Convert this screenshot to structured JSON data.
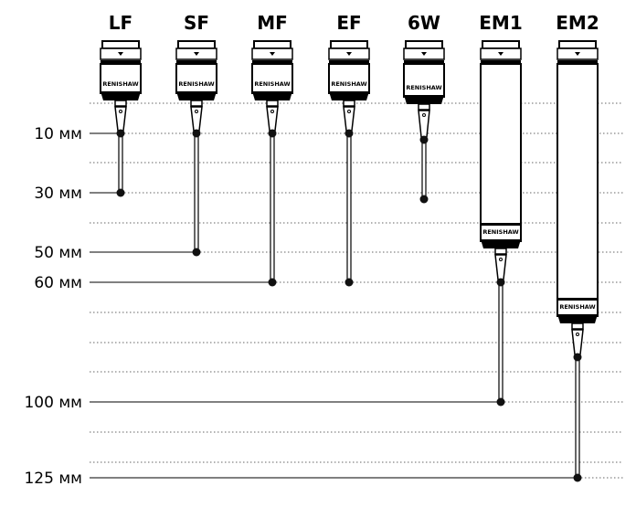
{
  "probes": [
    {
      "name": "LF",
      "brand": "RENISHAW"
    },
    {
      "name": "SF",
      "brand": "RENISHAW"
    },
    {
      "name": "MF",
      "brand": "RENISHAW"
    },
    {
      "name": "EF",
      "brand": "RENISHAW"
    },
    {
      "name": "6W",
      "brand": "RENISHAW"
    },
    {
      "name": "EM1",
      "brand": "RENISHAW"
    },
    {
      "name": "EM2",
      "brand": "RENISHAW"
    }
  ],
  "lengths": [
    "10 мм",
    "30 мм",
    "50 мм",
    "60 мм",
    "100 мм",
    "125 мм"
  ],
  "colors": {
    "line": "#000000",
    "dotted": "#555555"
  }
}
